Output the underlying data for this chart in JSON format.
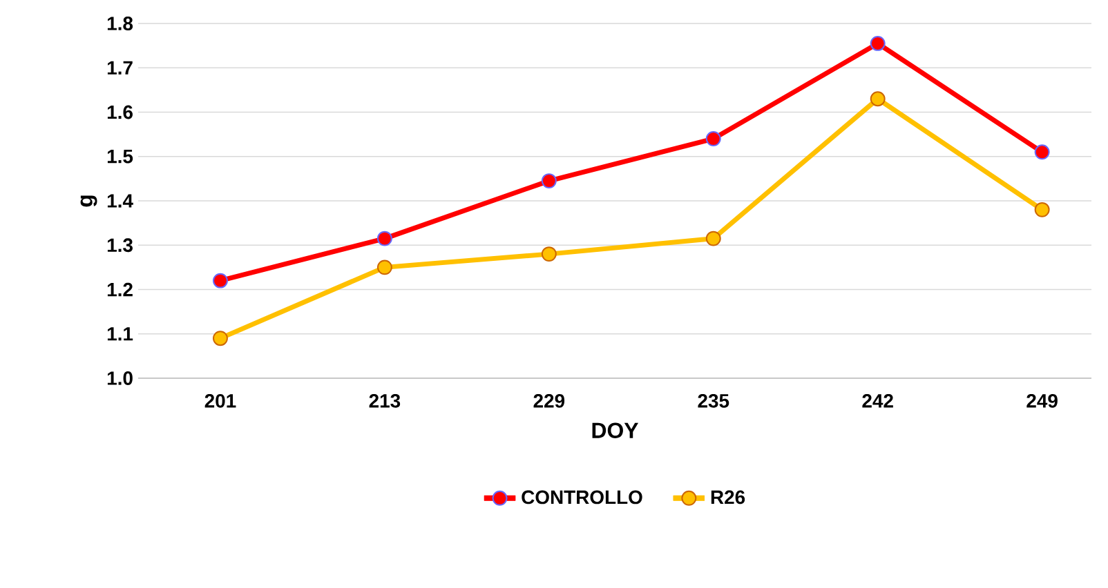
{
  "chart_data": {
    "type": "line",
    "xlabel": "DOY",
    "ylabel": "g",
    "categories": [
      "201",
      "213",
      "229",
      "235",
      "242",
      "249"
    ],
    "series": [
      {
        "name": "CONTROLLO",
        "color": "#ff0000",
        "values": [
          1.22,
          1.315,
          1.445,
          1.54,
          1.755,
          1.51
        ]
      },
      {
        "name": "R26",
        "color": "#ffc000",
        "values": [
          1.09,
          1.25,
          1.28,
          1.315,
          1.63,
          1.38
        ]
      }
    ],
    "ylim": [
      1.0,
      1.8
    ],
    "yticks": [
      {
        "value": 1.0,
        "label": "1.0"
      },
      1.1,
      1.2,
      1.3,
      1.4,
      1.5,
      1.6,
      1.7,
      1.8
    ],
    "grid": "y",
    "legend": "bottom",
    "marker": "circle",
    "line_style": "solid"
  }
}
